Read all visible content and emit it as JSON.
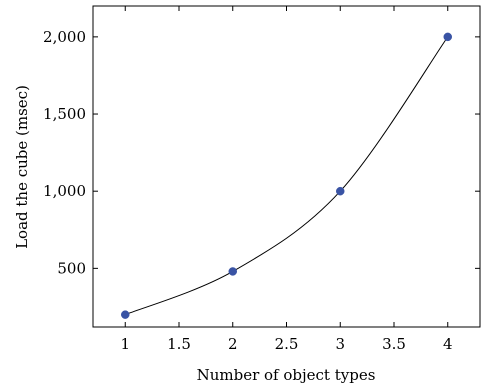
{
  "chart_data": {
    "type": "line",
    "title": "",
    "xlabel": "Number of object types",
    "ylabel": "Load the cube (msec)",
    "xlim": [
      0.7,
      4.3
    ],
    "ylim": [
      120,
      2200
    ],
    "x_ticks": [
      1,
      1.5,
      2,
      2.5,
      3,
      3.5,
      4
    ],
    "x_tick_labels": [
      "1",
      "1.5",
      "2",
      "2.5",
      "3",
      "3.5",
      "4"
    ],
    "y_ticks": [
      500,
      1000,
      1500,
      2000
    ],
    "y_tick_labels": [
      "500",
      "1,000",
      "1,500",
      "2,000"
    ],
    "grid": false,
    "series": [
      {
        "x": [
          1,
          2,
          3,
          4
        ],
        "y": [
          200,
          480,
          1000,
          2000
        ],
        "line_color": "#000000",
        "marker_color": "#3953a4",
        "smooth": true
      }
    ]
  }
}
